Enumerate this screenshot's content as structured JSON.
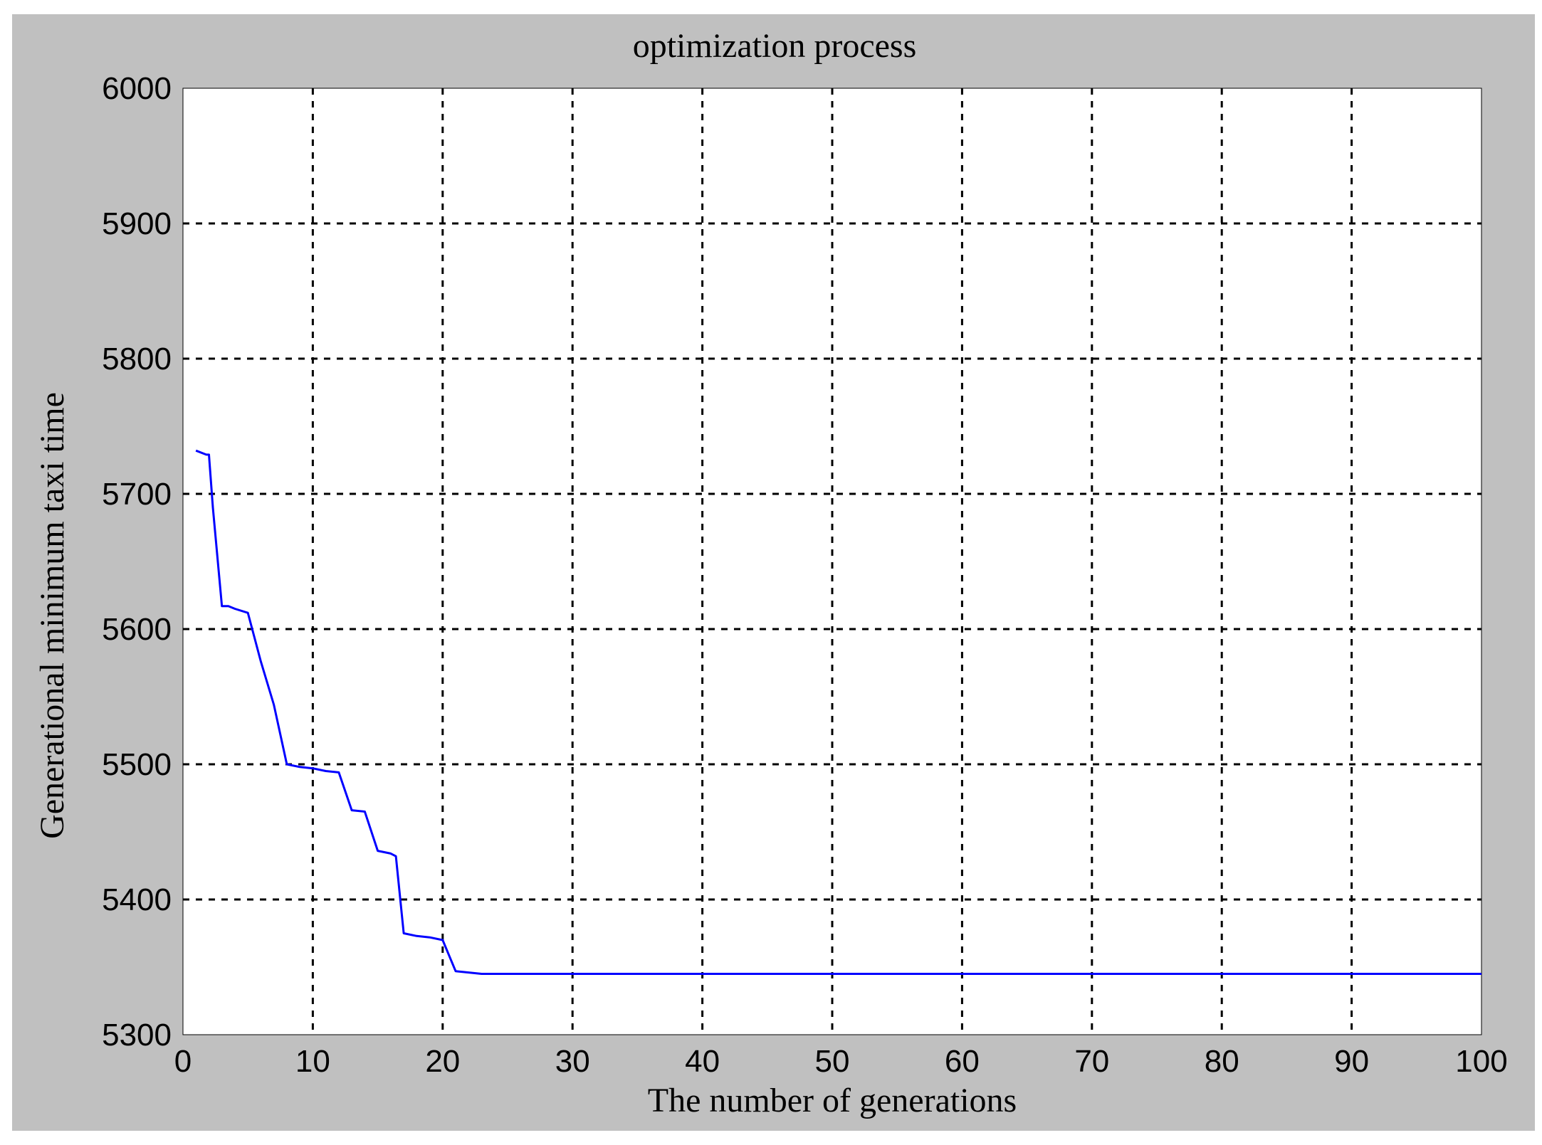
{
  "chart_data": {
    "type": "line",
    "title": "optimization process",
    "xlabel": "The number of generations",
    "ylabel": "Generational minimum taxi time",
    "xlim": [
      0,
      100
    ],
    "ylim": [
      5300,
      6000
    ],
    "xticks": [
      "0",
      "10",
      "20",
      "30",
      "40",
      "50",
      "60",
      "70",
      "80",
      "90",
      "100"
    ],
    "yticks": [
      "5300",
      "5400",
      "5500",
      "5600",
      "5700",
      "5800",
      "5900",
      "6000"
    ],
    "grid": true,
    "grid_style": "dashed",
    "series": [
      {
        "color": "#0000ff",
        "x": [
          1,
          1.8,
          2,
          2.3,
          3,
          3.5,
          4,
          5,
          6,
          7,
          8,
          9,
          10,
          11,
          12,
          13,
          14,
          15,
          16,
          16.4,
          17,
          18,
          19,
          20,
          21,
          22,
          23,
          30,
          40,
          50,
          60,
          70,
          80,
          90,
          100
        ],
        "y": [
          5732,
          5729,
          5729,
          5690,
          5617,
          5617,
          5615,
          5612,
          5576,
          5544,
          5500,
          5498,
          5497,
          5495,
          5494,
          5466,
          5465,
          5436,
          5434,
          5432,
          5375,
          5373,
          5372,
          5370,
          5347,
          5346,
          5345,
          5345,
          5345,
          5345,
          5345,
          5345,
          5345,
          5345,
          5345
        ]
      }
    ]
  }
}
